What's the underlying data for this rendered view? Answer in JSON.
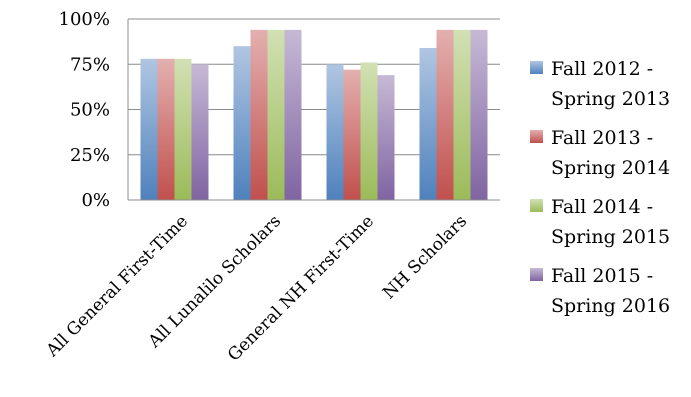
{
  "chart_data": {
    "type": "bar",
    "categories": [
      "All General First-Time",
      "All Lunalilo Scholars",
      "General NH First-Time",
      "NH Scholars"
    ],
    "series": [
      {
        "name": "Fall 2012 - Spring 2013",
        "label_lines": [
          "Fall 2012 -",
          "Spring 2013"
        ],
        "color": "#4f81bd",
        "values": [
          78,
          85,
          75,
          84
        ]
      },
      {
        "name": "Fall 2013 - Spring 2014",
        "label_lines": [
          "Fall 2013 -",
          "Spring 2014"
        ],
        "color": "#c0504d",
        "values": [
          78,
          94,
          72,
          94
        ]
      },
      {
        "name": "Fall 2014 - Spring 2015",
        "label_lines": [
          "Fall 2014 -",
          "Spring 2015"
        ],
        "color": "#9bbb59",
        "values": [
          78,
          94,
          76,
          94
        ]
      },
      {
        "name": "Fall 2015 - Spring 2016",
        "label_lines": [
          "Fall 2015 -",
          "Spring 2016"
        ],
        "color": "#8064a2",
        "values": [
          75,
          94,
          69,
          94
        ]
      }
    ],
    "ylim": [
      0,
      100
    ],
    "yticks": [
      0,
      25,
      50,
      75,
      100
    ],
    "ytick_labels": [
      "0%",
      "25%",
      "50%",
      "75%",
      "100%"
    ],
    "grid": true,
    "legend": "right",
    "title": "",
    "xlabel": "",
    "ylabel": ""
  }
}
